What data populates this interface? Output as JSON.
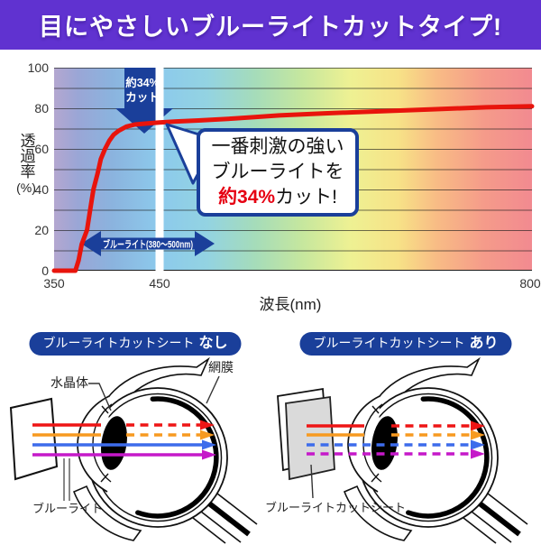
{
  "banner": {
    "title": "目にやさしいブルーライトカットタイプ!"
  },
  "colors": {
    "banner_purple": "#6032d0",
    "accent_dark_blue": "#1a3f9a",
    "curve_red": "#e8140c",
    "emphasis_red": "#e60012",
    "band_white": "#ffffff"
  },
  "chart_data": {
    "type": "line",
    "title": "",
    "xlabel": "波長(nm)",
    "ylabel_vertical": "透過率",
    "ylabel_unit": "(%)",
    "xlim": [
      350,
      800
    ],
    "ylim": [
      0,
      100
    ],
    "grid": "horizontal lines every 10%",
    "x_ticks": [
      "350",
      "450",
      "800"
    ],
    "y_ticks": [
      "100",
      "80",
      "60",
      "40",
      "20",
      "0"
    ],
    "background": "visible light spectrum gradient (violet-blue-cyan-green-yellow-orange-red)",
    "series": [
      {
        "name": "透過率(%)",
        "color": "#e8140c",
        "x": [
          350,
          370,
          373,
          376,
          381,
          384,
          387,
          391,
          394,
          398,
          402,
          406,
          411,
          418,
          426,
          437,
          449,
          465,
          486,
          520,
          562,
          605,
          656,
          707,
          757,
          800
        ],
        "y": [
          0,
          0,
          5,
          13,
          20,
          30,
          40,
          48,
          55,
          60,
          64,
          67,
          69,
          71,
          72,
          72.5,
          73,
          73.5,
          74,
          75,
          76.5,
          77.5,
          78.5,
          79.5,
          80.5,
          81
        ]
      }
    ],
    "annotations": {
      "down_arrow_line1": "約34%",
      "down_arrow_line2": "カット",
      "white_band_nm": 450,
      "range_arrow_label": "ブルーライト(380〜500nm)",
      "range_nm": [
        380,
        500
      ],
      "callout_line1": "一番刺激の強い",
      "callout_line2": "ブルーライトを",
      "callout_line3_em": "約34%",
      "callout_line3_rest": "カット!"
    }
  },
  "diagrams": {
    "left": {
      "header": "ブルーライトカットシート",
      "header_em": "なし",
      "label_lens": "水晶体",
      "label_retina": "網膜",
      "label_bluelight": "ブルーライト"
    },
    "right": {
      "header": "ブルーライトカットシート",
      "header_em": "あり",
      "label_sheet": "ブルーライトカットシート"
    },
    "rays": [
      {
        "name": "red",
        "color": "#ee1515",
        "left": "solid then dashed after lens",
        "right": "solid then dashed after lens"
      },
      {
        "name": "orange",
        "color": "#f79a20",
        "left": "solid then dashed after lens",
        "right": "solid then dashed after lens"
      },
      {
        "name": "blue",
        "color": "#3d6ceb",
        "left": "solid to retina",
        "right": "dashed (cut by sheet)"
      },
      {
        "name": "purple",
        "color": "#c519c9",
        "left": "solid to retina",
        "right": "dashed (cut by sheet)"
      }
    ]
  }
}
